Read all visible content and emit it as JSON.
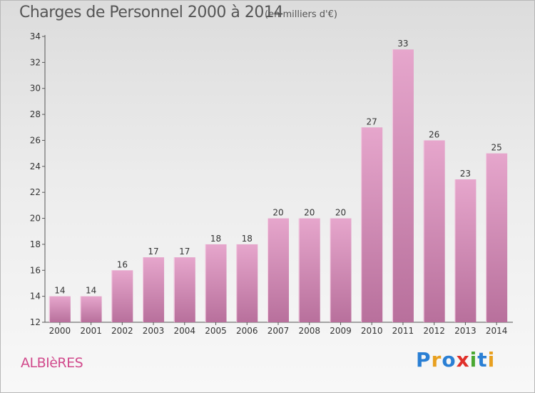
{
  "header": {
    "title": "Charges de Personnel 2000 à 2014",
    "subtitle": "(en milliers d'€)"
  },
  "footer": {
    "commune": "ALBIèRES",
    "logo_letters": [
      {
        "ch": "P",
        "color": "#2a7fd4"
      },
      {
        "ch": "r",
        "color": "#e8a020"
      },
      {
        "ch": "o",
        "color": "#2a7fd4"
      },
      {
        "ch": "x",
        "color": "#e0302a"
      },
      {
        "ch": "i",
        "color": "#4aa832"
      },
      {
        "ch": "t",
        "color": "#2a7fd4"
      },
      {
        "ch": "i",
        "color": "#e8a020"
      }
    ]
  },
  "chart_data": {
    "type": "bar",
    "title": "Charges de Personnel 2000 à 2014",
    "subtitle": "(en milliers d'€)",
    "categories": [
      "2000",
      "2001",
      "2002",
      "2003",
      "2004",
      "2005",
      "2006",
      "2007",
      "2008",
      "2009",
      "2010",
      "2011",
      "2012",
      "2013",
      "2014"
    ],
    "values": [
      14,
      14,
      16,
      17,
      17,
      18,
      18,
      20,
      20,
      20,
      27,
      33,
      26,
      23,
      25
    ],
    "ylim": [
      12,
      34
    ],
    "yticks": [
      12,
      14,
      16,
      18,
      20,
      22,
      24,
      26,
      28,
      30,
      32,
      34
    ],
    "grid": false,
    "bar_color_top": "#e6a6cc",
    "bar_color_bottom": "#b8709c"
  }
}
